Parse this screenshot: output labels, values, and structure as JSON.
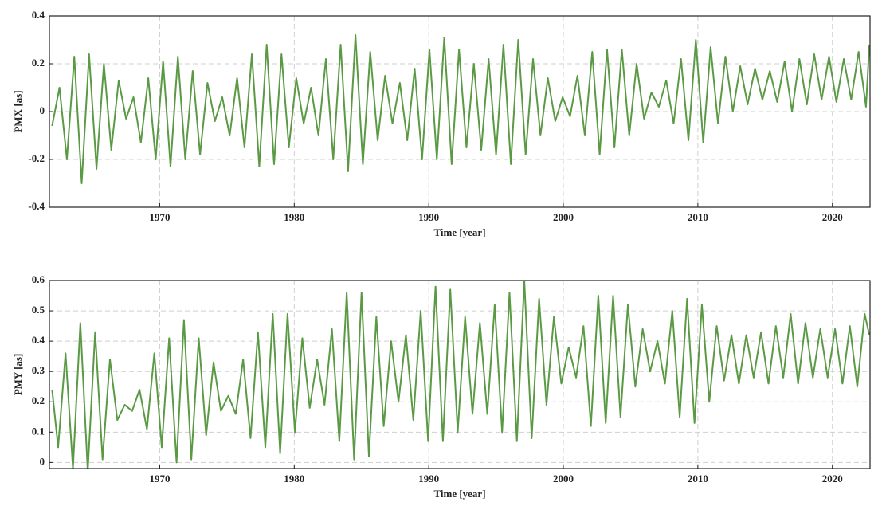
{
  "chart_data": [
    {
      "type": "line",
      "y_label": "PMX [as]",
      "x_label": "Time [year]",
      "color": "#5b9a44",
      "grid": true,
      "xlim": [
        1961.8,
        2022.8
      ],
      "xticks": [
        1970,
        1980,
        1990,
        2000,
        2010,
        2020
      ],
      "ylim": [
        -0.4,
        0.4
      ],
      "yticks": [
        -0.4,
        -0.2,
        0,
        0.2,
        0.4
      ],
      "x": [
        1962.0,
        1962.55,
        1963.1,
        1963.65,
        1964.2,
        1964.75,
        1965.3,
        1965.85,
        1966.4,
        1966.95,
        1967.5,
        1968.05,
        1968.6,
        1969.15,
        1969.7,
        1970.25,
        1970.8,
        1971.35,
        1971.9,
        1972.45,
        1973.0,
        1973.55,
        1974.1,
        1974.65,
        1975.2,
        1975.75,
        1976.3,
        1976.85,
        1977.4,
        1977.95,
        1978.5,
        1979.05,
        1979.6,
        1980.15,
        1980.7,
        1981.25,
        1981.8,
        1982.35,
        1982.9,
        1983.45,
        1984.0,
        1984.55,
        1985.1,
        1985.65,
        1986.2,
        1986.75,
        1987.3,
        1987.85,
        1988.4,
        1988.95,
        1989.5,
        1990.05,
        1990.6,
        1991.15,
        1991.7,
        1992.25,
        1992.8,
        1993.35,
        1993.9,
        1994.45,
        1995.0,
        1995.55,
        1996.1,
        1996.65,
        1997.2,
        1997.75,
        1998.3,
        1998.85,
        1999.4,
        1999.95,
        2000.5,
        2001.05,
        2001.6,
        2002.15,
        2002.7,
        2003.25,
        2003.8,
        2004.35,
        2004.9,
        2005.45,
        2006.0,
        2006.55,
        2007.1,
        2007.65,
        2008.2,
        2008.75,
        2009.3,
        2009.85,
        2010.4,
        2010.95,
        2011.5,
        2012.05,
        2012.6,
        2013.15,
        2013.7,
        2014.25,
        2014.8,
        2015.35,
        2015.9,
        2016.45,
        2017.0,
        2017.55,
        2018.1,
        2018.65,
        2019.2,
        2019.75,
        2020.3,
        2020.85,
        2021.4,
        2021.95,
        2022.5,
        2022.75
      ],
      "values": [
        -0.06,
        0.1,
        -0.2,
        0.23,
        -0.3,
        0.24,
        -0.24,
        0.2,
        -0.16,
        0.13,
        -0.03,
        0.06,
        -0.13,
        0.14,
        -0.2,
        0.21,
        -0.23,
        0.23,
        -0.2,
        0.17,
        -0.18,
        0.12,
        -0.04,
        0.06,
        -0.1,
        0.14,
        -0.15,
        0.24,
        -0.23,
        0.28,
        -0.22,
        0.24,
        -0.15,
        0.14,
        -0.05,
        0.1,
        -0.1,
        0.22,
        -0.2,
        0.28,
        -0.25,
        0.32,
        -0.22,
        0.25,
        -0.12,
        0.15,
        -0.05,
        0.12,
        -0.12,
        0.18,
        -0.2,
        0.26,
        -0.2,
        0.31,
        -0.22,
        0.26,
        -0.15,
        0.2,
        -0.16,
        0.22,
        -0.18,
        0.28,
        -0.22,
        0.3,
        -0.18,
        0.22,
        -0.1,
        0.14,
        -0.04,
        0.06,
        -0.02,
        0.15,
        -0.1,
        0.25,
        -0.18,
        0.26,
        -0.15,
        0.26,
        -0.1,
        0.2,
        -0.03,
        0.08,
        0.02,
        0.13,
        -0.05,
        0.22,
        -0.12,
        0.3,
        -0.13,
        0.27,
        -0.05,
        0.23,
        0.0,
        0.19,
        0.03,
        0.18,
        0.05,
        0.17,
        0.04,
        0.21,
        0.0,
        0.22,
        0.03,
        0.24,
        0.05,
        0.23,
        0.04,
        0.22,
        0.05,
        0.25,
        0.02,
        0.28
      ]
    },
    {
      "type": "line",
      "y_label": "PMY [as]",
      "x_label": "Time [year]",
      "color": "#5b9a44",
      "grid": true,
      "xlim": [
        1961.8,
        2022.8
      ],
      "xticks": [
        1970,
        1980,
        1990,
        2000,
        2010,
        2020
      ],
      "ylim": [
        -0.02,
        0.6
      ],
      "yticks": [
        0,
        0.1,
        0.2,
        0.3,
        0.4,
        0.5,
        0.6
      ],
      "x": [
        1962.0,
        1962.45,
        1963.0,
        1963.55,
        1964.1,
        1964.65,
        1965.2,
        1965.75,
        1966.3,
        1966.85,
        1967.4,
        1967.95,
        1968.5,
        1969.05,
        1969.6,
        1970.15,
        1970.7,
        1971.25,
        1971.8,
        1972.35,
        1972.9,
        1973.45,
        1974.0,
        1974.55,
        1975.1,
        1975.65,
        1976.2,
        1976.75,
        1977.3,
        1977.85,
        1978.4,
        1978.95,
        1979.5,
        1980.05,
        1980.6,
        1981.15,
        1981.7,
        1982.25,
        1982.8,
        1983.35,
        1983.9,
        1984.45,
        1985.0,
        1985.55,
        1986.1,
        1986.65,
        1987.2,
        1987.75,
        1988.3,
        1988.85,
        1989.4,
        1989.95,
        1990.5,
        1991.05,
        1991.6,
        1992.15,
        1992.7,
        1993.25,
        1993.8,
        1994.35,
        1994.9,
        1995.45,
        1996.0,
        1996.55,
        1997.1,
        1997.65,
        1998.2,
        1998.75,
        1999.3,
        1999.85,
        2000.4,
        2000.95,
        2001.5,
        2002.05,
        2002.6,
        2003.15,
        2003.7,
        2004.25,
        2004.8,
        2005.35,
        2005.9,
        2006.45,
        2007.0,
        2007.55,
        2008.1,
        2008.65,
        2009.2,
        2009.75,
        2010.3,
        2010.85,
        2011.4,
        2011.95,
        2012.5,
        2013.05,
        2013.6,
        2014.15,
        2014.7,
        2015.25,
        2015.8,
        2016.35,
        2016.9,
        2017.45,
        2018.0,
        2018.55,
        2019.1,
        2019.65,
        2020.2,
        2020.75,
        2021.3,
        2021.85,
        2022.4,
        2022.75
      ],
      "values": [
        0.24,
        0.05,
        0.36,
        -0.02,
        0.46,
        -0.03,
        0.43,
        0.01,
        0.34,
        0.14,
        0.19,
        0.17,
        0.24,
        0.11,
        0.36,
        0.05,
        0.41,
        0.0,
        0.47,
        0.01,
        0.41,
        0.09,
        0.33,
        0.17,
        0.22,
        0.16,
        0.34,
        0.08,
        0.43,
        0.05,
        0.49,
        0.03,
        0.49,
        0.1,
        0.41,
        0.18,
        0.34,
        0.19,
        0.44,
        0.07,
        0.56,
        0.01,
        0.56,
        0.02,
        0.48,
        0.12,
        0.4,
        0.2,
        0.42,
        0.14,
        0.5,
        0.07,
        0.58,
        0.07,
        0.57,
        0.1,
        0.48,
        0.16,
        0.46,
        0.16,
        0.52,
        0.1,
        0.56,
        0.07,
        0.6,
        0.08,
        0.54,
        0.19,
        0.48,
        0.26,
        0.38,
        0.28,
        0.45,
        0.12,
        0.55,
        0.13,
        0.55,
        0.15,
        0.52,
        0.25,
        0.44,
        0.3,
        0.4,
        0.26,
        0.5,
        0.15,
        0.54,
        0.13,
        0.52,
        0.2,
        0.45,
        0.27,
        0.42,
        0.26,
        0.42,
        0.28,
        0.43,
        0.26,
        0.45,
        0.28,
        0.49,
        0.26,
        0.46,
        0.28,
        0.44,
        0.28,
        0.44,
        0.26,
        0.45,
        0.25,
        0.49,
        0.42
      ]
    }
  ]
}
